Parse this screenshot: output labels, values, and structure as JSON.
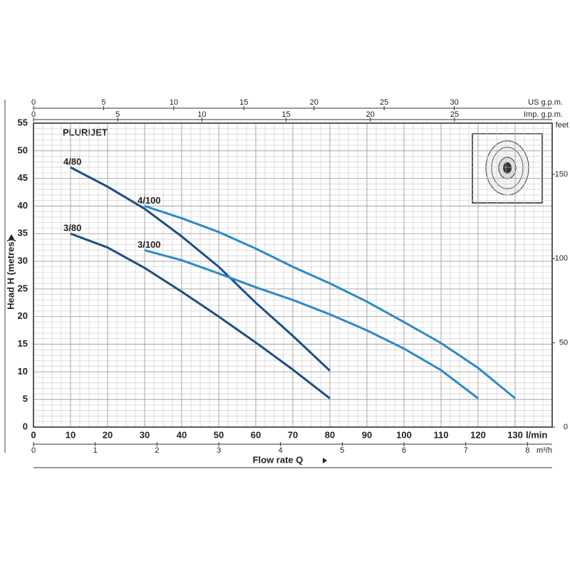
{
  "chart_data": {
    "type": "line",
    "title": "PLURIJET",
    "xlabel": "Flow rate Q",
    "ylabel": "Head H (metres)",
    "xunit": "l/min",
    "xlim": [
      0,
      140
    ],
    "xticks": [
      0,
      10,
      20,
      30,
      40,
      50,
      60,
      70,
      80,
      90,
      100,
      110,
      120,
      130
    ],
    "ylim": [
      0,
      55
    ],
    "yticks": [
      0,
      5,
      10,
      15,
      20,
      25,
      30,
      35,
      40,
      45,
      50,
      55
    ],
    "y2label": "feet",
    "y2lim": [
      0,
      180.4
    ],
    "y2ticks": [
      0,
      50,
      100,
      150
    ],
    "top_axes": [
      {
        "label": "US g.p.m.",
        "lim": [
          0,
          36.98
        ],
        "ticks": [
          0,
          5,
          10,
          15,
          20,
          25,
          30
        ]
      },
      {
        "label": "Imp. g.p.m.",
        "lim": [
          0,
          30.8
        ],
        "ticks": [
          0,
          5,
          10,
          15,
          20,
          25
        ]
      }
    ],
    "bottom_axis": {
      "label": "m³/h",
      "lim": [
        0,
        8.4
      ],
      "ticks": [
        0,
        1,
        2,
        3,
        4,
        5,
        6,
        7,
        8
      ]
    },
    "grid": true,
    "x_minor_step": 2.5,
    "y_minor_step": 1,
    "series": [
      {
        "name": "4/80",
        "color": "#1b4f86",
        "x": [
          10,
          20,
          30,
          40,
          50,
          60,
          70,
          80
        ],
        "values": [
          47,
          43.5,
          39.5,
          34.5,
          29,
          22.5,
          16.5,
          10.2
        ]
      },
      {
        "name": "3/80",
        "color": "#1b4f86",
        "x": [
          10,
          20,
          30,
          40,
          50,
          60,
          70,
          80
        ],
        "values": [
          35,
          32.5,
          28.8,
          24.5,
          20,
          15.3,
          10.4,
          5.2
        ]
      },
      {
        "name": "4/100",
        "color": "#2b8bc6",
        "x": [
          30,
          40,
          50,
          60,
          70,
          80,
          90,
          100,
          110,
          120,
          130
        ],
        "values": [
          40,
          37.8,
          35.3,
          32.3,
          29,
          26,
          22.7,
          19,
          15.2,
          10.7,
          5.2
        ]
      },
      {
        "name": "3/100",
        "color": "#2b8bc6",
        "x": [
          30,
          40,
          50,
          60,
          70,
          80,
          90,
          100,
          110,
          120
        ],
        "values": [
          32,
          30.2,
          27.8,
          25.3,
          23,
          20.4,
          17.5,
          14.2,
          10.3,
          5.2
        ]
      }
    ]
  }
}
